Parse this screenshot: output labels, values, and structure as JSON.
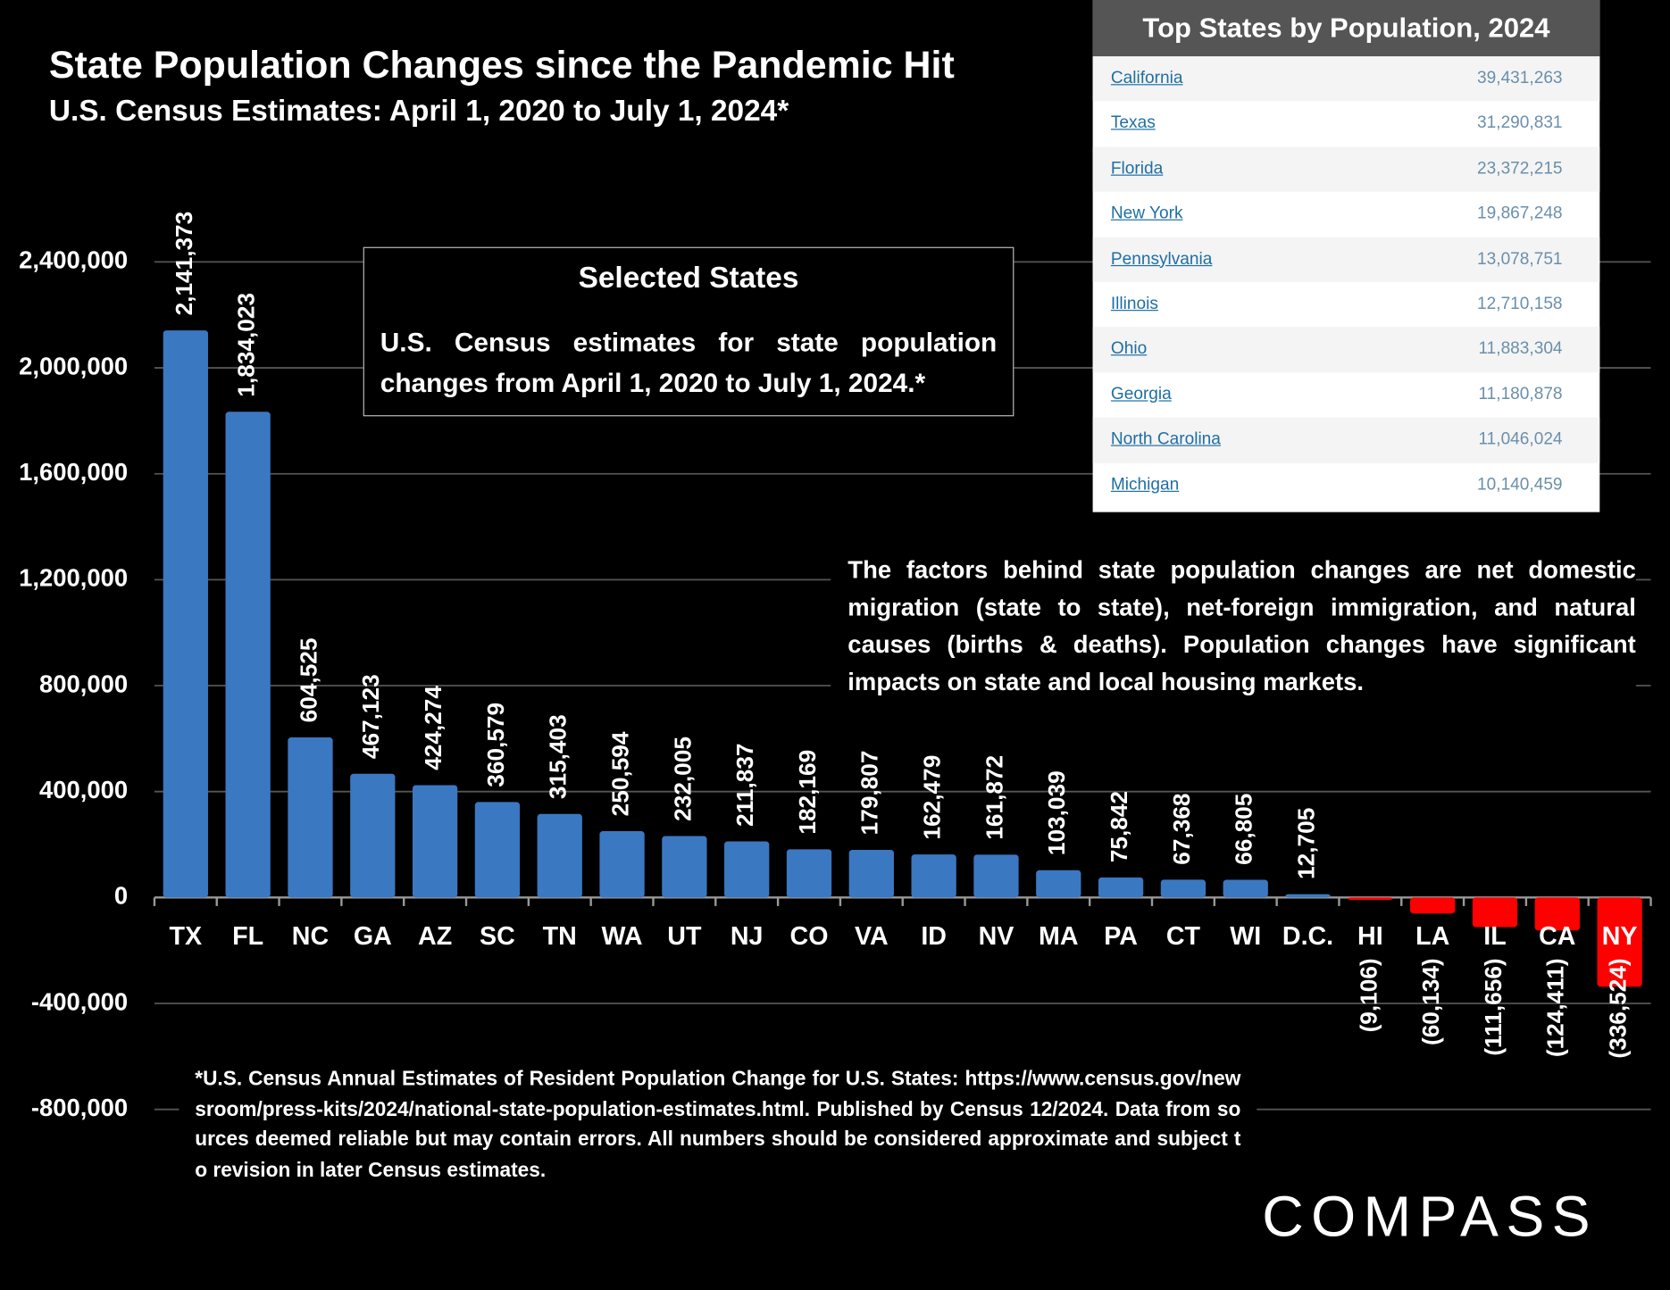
{
  "chart_data": {
    "type": "bar",
    "title": "State Population Changes since the Pandemic Hit",
    "subtitle": "U.S. Census Estimates: April 1, 2020 to July 1, 2024*",
    "categories": [
      "TX",
      "FL",
      "NC",
      "GA",
      "AZ",
      "SC",
      "TN",
      "WA",
      "UT",
      "NJ",
      "CO",
      "VA",
      "ID",
      "NV",
      "MA",
      "PA",
      "CT",
      "WI",
      "D.C.",
      "HI",
      "LA",
      "IL",
      "CA",
      "NY"
    ],
    "values": [
      2141373,
      1834023,
      604525,
      467123,
      424274,
      360579,
      315403,
      250594,
      232005,
      211837,
      182169,
      179807,
      162479,
      161872,
      103039,
      75842,
      67368,
      66805,
      12705,
      -9106,
      -60134,
      -111656,
      -124411,
      -336524
    ],
    "value_labels": [
      "2,141,373",
      "1,834,023",
      "604,525",
      "467,123",
      "424,274",
      "360,579",
      "315,403",
      "250,594",
      "232,005",
      "211,837",
      "182,169",
      "179,807",
      "162,479",
      "161,872",
      "103,039",
      "75,842",
      "67,368",
      "66,805",
      "12,705",
      "(9,106)",
      "(60,134)",
      "(111,656)",
      "(124,411)",
      "(336,524)"
    ],
    "color": "#3b78c2",
    "negative_color": "#ff0000",
    "ylim": [
      -800000,
      2400000
    ],
    "yticks": [
      {
        "value": -800000,
        "label": "-800,000"
      },
      {
        "value": -400000,
        "label": "-400,000"
      },
      0,
      {
        "value": 400000,
        "label": "400,000"
      },
      {
        "value": 800000,
        "label": "800,000"
      },
      {
        "value": 1200000,
        "label": "1,200,000"
      },
      {
        "value": 1600000,
        "label": "1,600,000"
      },
      {
        "value": 2000000,
        "label": "2,000,000"
      },
      {
        "value": 2400000,
        "label": "2,400,000"
      }
    ],
    "grid": true,
    "inset_title": "Selected States",
    "inset_text": "U.S. Census estimates for state population changes from April 1, 2020 to July 1, 2024.*",
    "note": "The factors behind state population changes are net domestic migration (state to state), net-foreign immigration, and natural causes (births & deaths). Population changes have significant impacts on state and local housing markets.",
    "footnote": "*U.S. Census Annual Estimates of Resident Population Change for U.S. States: https://www.census.gov/newsroom/press-kits/2024/national-state-population-estimates.html. Published by Census 12/2024. Data from sources deemed reliable but may contain errors. All numbers should be considered approximate and subject to revision in later Census estimates."
  },
  "table": {
    "title": "Top States by Population, 2024",
    "rows": [
      [
        "California",
        "39,431,263"
      ],
      [
        "Texas",
        "31,290,831"
      ],
      [
        "Florida",
        "23,372,215"
      ],
      [
        "New York",
        "19,867,248"
      ],
      [
        "Pennsylvania",
        "13,078,751"
      ],
      [
        "Illinois",
        "12,710,158"
      ],
      [
        "Ohio",
        "11,883,304"
      ],
      [
        "Georgia",
        "11,180,878"
      ],
      [
        "North Carolina",
        "11,046,024"
      ],
      [
        "Michigan",
        "10,140,459"
      ]
    ]
  },
  "brand": "COMPASS"
}
